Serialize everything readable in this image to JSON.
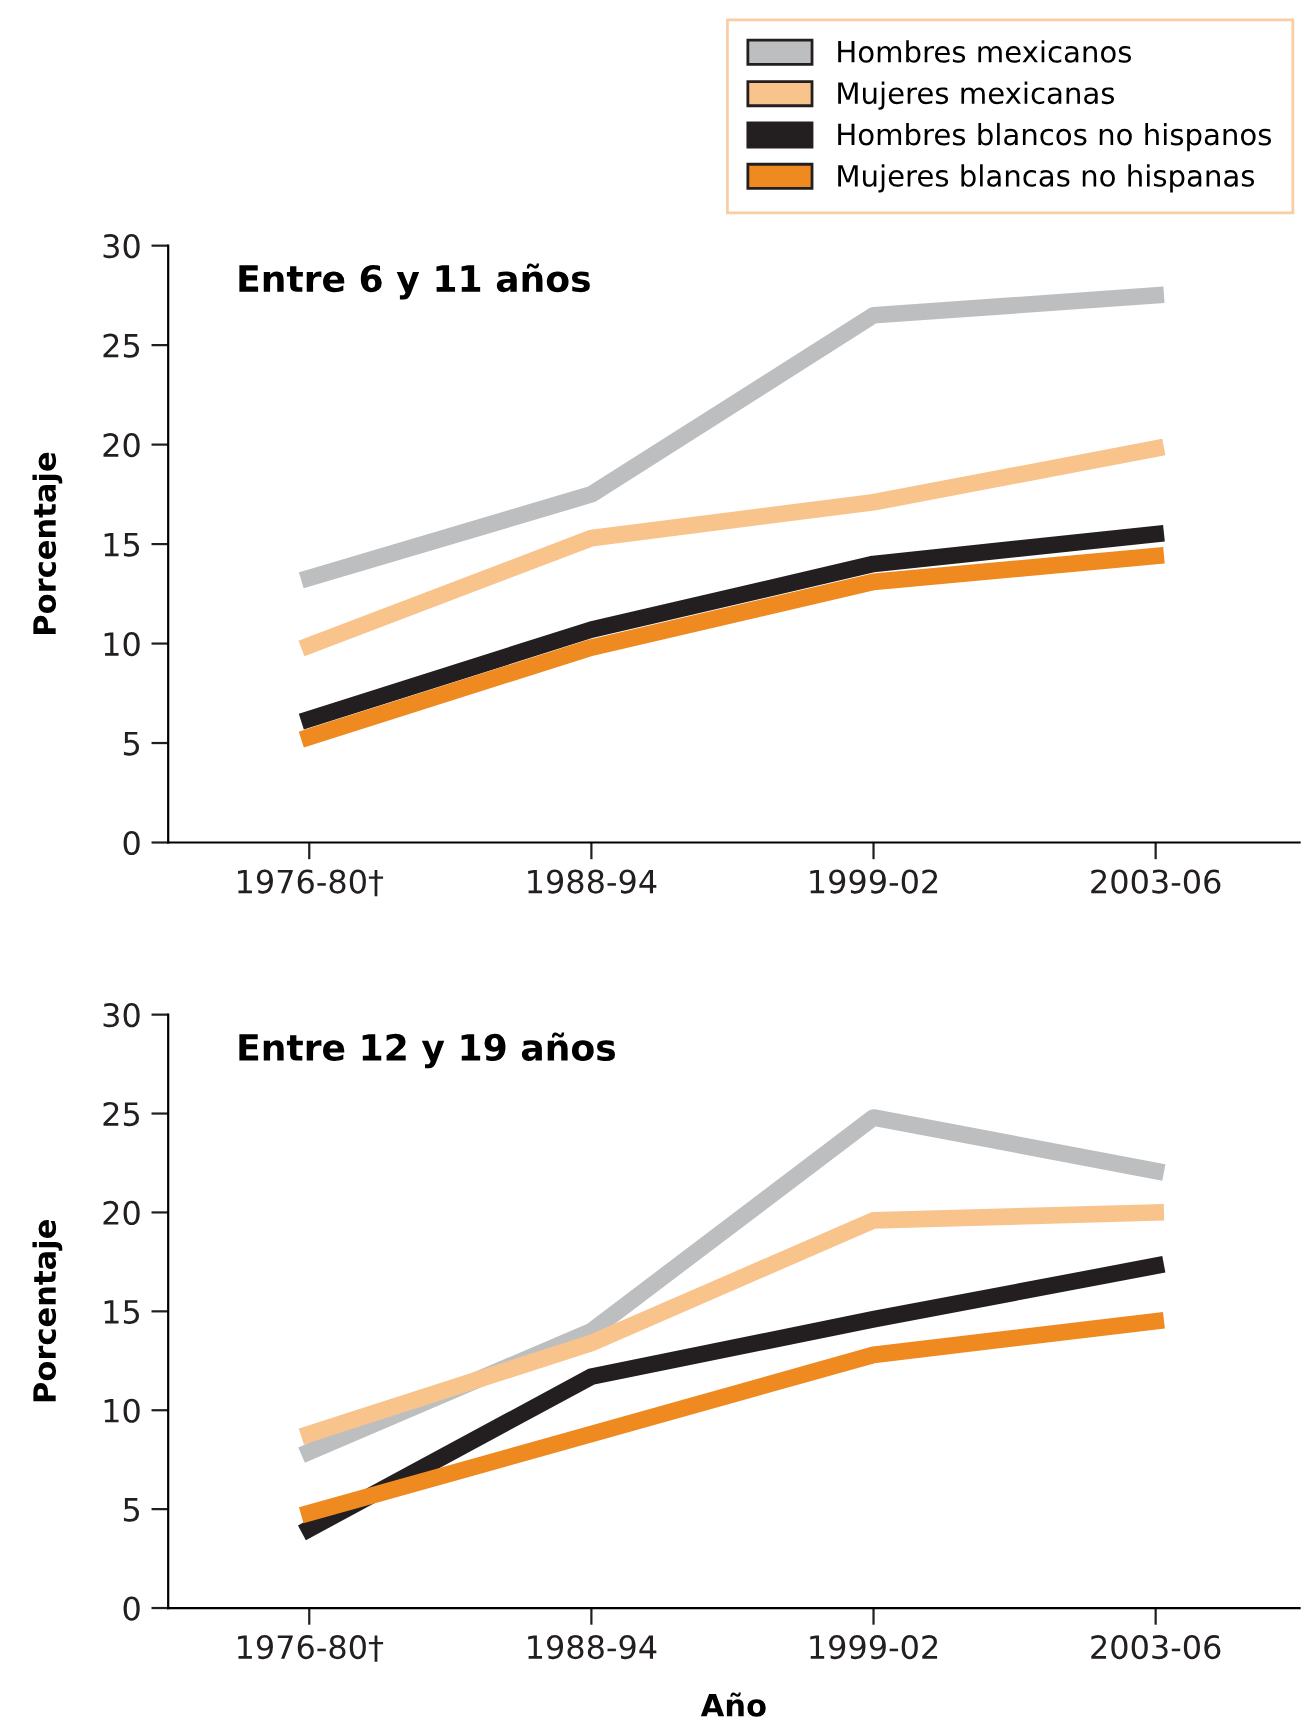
{
  "chart_data": [
    {
      "type": "line",
      "title": "Entre 6 y 11 años",
      "ylabel": "Porcentaje",
      "categories": [
        "1976-80†",
        "1988-94",
        "1999-02",
        "2003-06"
      ],
      "ylim": [
        0,
        30
      ],
      "yticks": [
        0,
        5,
        10,
        15,
        20,
        25,
        30
      ],
      "legend": "top right",
      "grid": false,
      "series": [
        {
          "name": "Hombres mexicanos",
          "color": "#bcbec0",
          "values": [
            13.3,
            17.5,
            26.5,
            27.5
          ]
        },
        {
          "name": "Mujeres mexicanas",
          "color": "#f9c38c",
          "values": [
            9.9,
            15.3,
            17.1,
            19.8
          ]
        },
        {
          "name": "Hombres blancos no hispanos",
          "color": "#231f20",
          "values": [
            6.2,
            10.7,
            14.0,
            15.5
          ]
        },
        {
          "name": "Mujeres blancas no hispanas",
          "color": "#ee8a1f",
          "values": [
            5.3,
            9.8,
            13.1,
            14.4
          ]
        }
      ]
    },
    {
      "type": "line",
      "title": "Entre 12 y 19 años",
      "ylabel": "Porcentaje",
      "xlabel": "Año",
      "categories": [
        "1976-80†",
        "1988-94",
        "1999-02",
        "2003-06"
      ],
      "ylim": [
        0,
        30
      ],
      "yticks": [
        0,
        5,
        10,
        15,
        20,
        25,
        30
      ],
      "grid": false,
      "series": [
        {
          "color": "#bcbec0",
          "values": [
            7.9,
            14.0,
            24.8,
            22.1
          ]
        },
        {
          "color": "#f9c38c",
          "values": [
            8.8,
            13.4,
            19.6,
            20.0
          ]
        },
        {
          "color": "#231f20",
          "values": [
            4.0,
            11.7,
            14.6,
            17.3
          ]
        },
        {
          "color": "#ee8a1f",
          "values": [
            4.8,
            8.8,
            12.8,
            14.5
          ]
        }
      ]
    }
  ]
}
